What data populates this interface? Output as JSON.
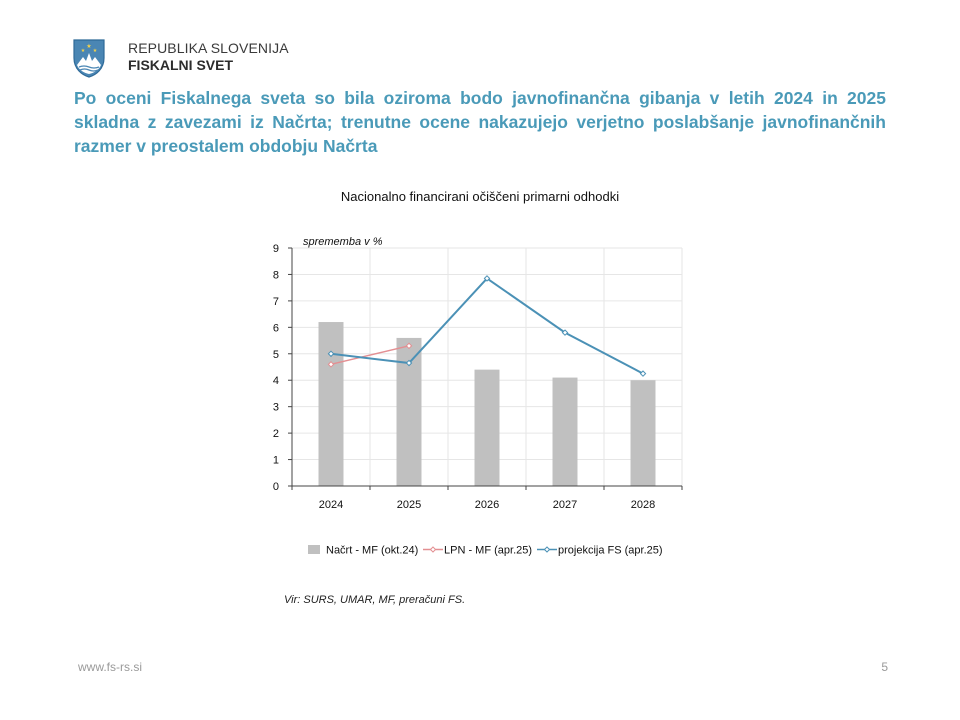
{
  "header": {
    "org_line1": "REPUBLIKA SLOVENIJA",
    "org_line2": "FISKALNI SVET",
    "logo_icon": "slovenia-coat-of-arms-icon"
  },
  "headline": "Po oceni Fiskalnega sveta so bila oziroma bodo javnofinančna gibanja v letih 2024 in 2025 skladna z zavezami iz Načrta; trenutne ocene nakazujejo verjetno poslabšanje javnofinančnih razmer v preostalem obdobju Načrta",
  "chart_data": {
    "type": "bar",
    "title": "Nacionalno financirani očiščeni primarni odhodki",
    "ylabel": "sprememba v %",
    "xlabel": "",
    "ylim": [
      0,
      9
    ],
    "yticks": [
      "0",
      "1",
      "2",
      "3",
      "4",
      "5",
      "6",
      "7",
      "8",
      "9"
    ],
    "categories": [
      "2024",
      "2025",
      "2026",
      "2027",
      "2028"
    ],
    "grid": true,
    "legend_position": "bottom",
    "series": [
      {
        "name": "Načrt - MF (okt.24)",
        "kind": "bar",
        "color": "#c0c0c0",
        "values": [
          6.2,
          5.6,
          4.4,
          4.1,
          4.0
        ]
      },
      {
        "name": "LPN - MF (apr.25)",
        "kind": "line",
        "color": "#e38f92",
        "values": [
          4.6,
          5.3,
          null,
          null,
          null
        ]
      },
      {
        "name": "projekcija FS (apr.25)",
        "kind": "line",
        "color": "#4b91b6",
        "values": [
          5.0,
          4.65,
          7.85,
          5.8,
          4.25
        ]
      }
    ]
  },
  "source_note": "Vir: SURS, UMAR, MF, preračuni FS.",
  "footer": {
    "url": "www.fs-rs.si",
    "page": "5"
  }
}
